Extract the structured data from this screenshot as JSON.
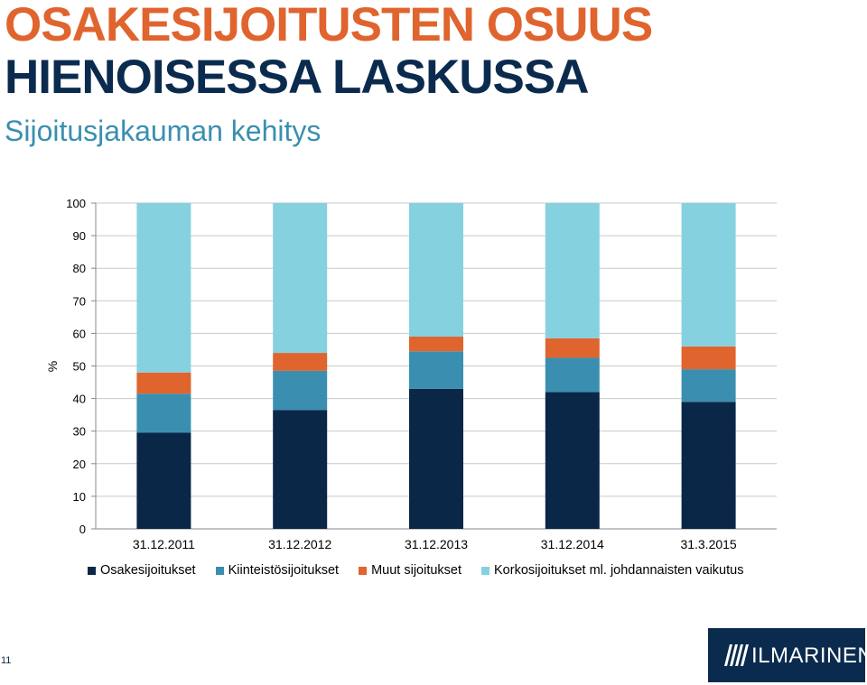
{
  "header": {
    "title_line1": "OSAKESIJOITUSTEN OSUUS",
    "title_line2": "HIENOISESSA LASKUSSA",
    "subtitle": "Sijoitusjakauman kehitys"
  },
  "colors": {
    "orange": "#e0642e",
    "navy": "#0b2b4e",
    "teal": "#3a8fb0"
  },
  "chart_data": {
    "type": "bar",
    "stacked": true,
    "ylabel": "%",
    "ylim": [
      0,
      100
    ],
    "yticks": [
      0,
      10,
      20,
      30,
      40,
      50,
      60,
      70,
      80,
      90,
      100
    ],
    "grid": true,
    "legend_position": "bottom",
    "categories": [
      "31.12.2011",
      "31.12.2012",
      "31.12.2013",
      "31.12.2014",
      "31.3.2015"
    ],
    "series": [
      {
        "name": "Osakesijoitukset",
        "color": "#0a2748",
        "values": [
          29.5,
          36.5,
          43,
          42,
          39
        ]
      },
      {
        "name": "Kiinteistösijoitukset",
        "color": "#3a8fb0",
        "values": [
          12,
          12,
          11.5,
          10.5,
          10
        ]
      },
      {
        "name": "Muut sijoitukset",
        "color": "#e0642e",
        "values": [
          6.5,
          5.5,
          4.5,
          6,
          7
        ]
      },
      {
        "name": "Korkosijoitukset ml. johdannaisten vaikutus",
        "color": "#86d1df",
        "values": [
          52,
          46,
          41,
          41.5,
          44
        ]
      }
    ]
  },
  "footer": {
    "page_number": "11",
    "logo_text": "ILMARINEN",
    "logo_icon": "ilmarinen-logo-icon"
  }
}
